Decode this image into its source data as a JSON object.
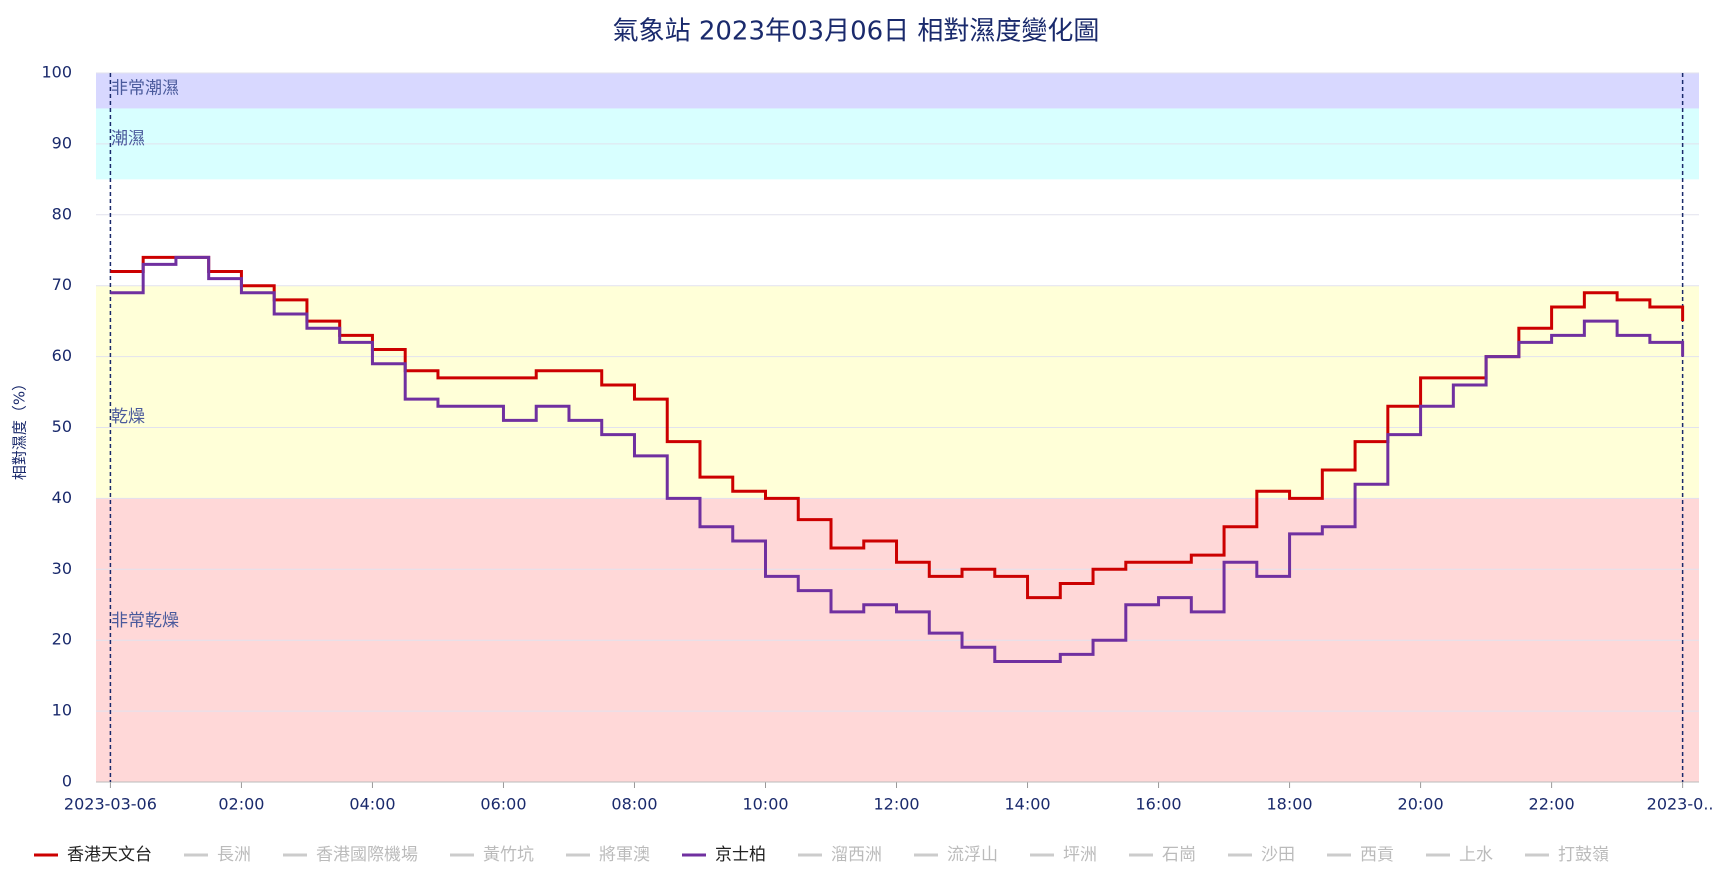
{
  "chart_data": {
    "type": "line",
    "title": "氣象站 2023年03月06日 相對濕度變化圖",
    "y_label": "相對濕度（%）",
    "x": [
      0,
      0.5,
      1,
      1.5,
      2,
      2.5,
      3,
      3.5,
      4,
      4.5,
      5,
      5.5,
      6,
      6.5,
      7,
      7.5,
      8,
      8.5,
      9,
      9.5,
      10,
      10.5,
      11,
      11.5,
      12,
      12.5,
      13,
      13.5,
      14,
      14.5,
      15,
      15.5,
      16,
      16.5,
      17,
      17.5,
      18,
      18.5,
      19,
      19.5,
      20,
      20.5,
      21,
      21.5,
      22,
      22.5,
      23,
      23.5,
      24
    ],
    "series": [
      {
        "name": "香港天文台",
        "color": "#cc0000",
        "visible": true,
        "values": [
          72,
          74,
          74,
          72,
          70,
          68,
          65,
          63,
          61,
          58,
          57,
          57,
          57,
          58,
          58,
          56,
          54,
          48,
          43,
          41,
          40,
          37,
          33,
          34,
          31,
          29,
          30,
          29,
          26,
          28,
          30,
          31,
          31,
          32,
          36,
          41,
          40,
          44,
          48,
          53,
          57,
          57,
          60,
          64,
          67,
          69,
          68,
          67,
          65
        ]
      },
      {
        "name": "長洲",
        "color": "#cccccc",
        "visible": false
      },
      {
        "name": "香港國際機場",
        "color": "#cccccc",
        "visible": false
      },
      {
        "name": "黃竹坑",
        "color": "#cccccc",
        "visible": false
      },
      {
        "name": "將軍澳",
        "color": "#cccccc",
        "visible": false
      },
      {
        "name": "京士柏",
        "color": "#7030a0",
        "visible": true,
        "values": [
          69,
          73,
          74,
          71,
          69,
          66,
          64,
          62,
          59,
          54,
          53,
          53,
          51,
          53,
          51,
          49,
          46,
          40,
          36,
          34,
          29,
          27,
          24,
          25,
          24,
          21,
          19,
          17,
          17,
          18,
          20,
          25,
          26,
          24,
          31,
          29,
          35,
          36,
          42,
          49,
          53,
          56,
          60,
          62,
          63,
          65,
          63,
          62,
          60
        ]
      },
      {
        "name": "溜西洲",
        "color": "#cccccc",
        "visible": false
      },
      {
        "name": "流浮山",
        "color": "#cccccc",
        "visible": false
      },
      {
        "name": "坪洲",
        "color": "#cccccc",
        "visible": false
      },
      {
        "name": "石崗",
        "color": "#cccccc",
        "visible": false
      },
      {
        "name": "沙田",
        "color": "#cccccc",
        "visible": false
      },
      {
        "name": "西貢",
        "color": "#cccccc",
        "visible": false
      },
      {
        "name": "上水",
        "color": "#cccccc",
        "visible": false
      },
      {
        "name": "打鼓嶺",
        "color": "#cccccc",
        "visible": false
      }
    ],
    "bands": [
      {
        "label": "非常潮濕",
        "from": 95,
        "to": 100,
        "color": "#d8d8ff"
      },
      {
        "label": "潮濕",
        "from": 85,
        "to": 95,
        "color": "#d8ffff"
      },
      {
        "label": "乾燥",
        "from": 40,
        "to": 70,
        "color": "#ffffd8"
      },
      {
        "label": "非常乾燥",
        "from": 0,
        "to": 40,
        "color": "#ffd8d8"
      }
    ],
    "vlines": [
      0,
      24
    ],
    "xlim": [
      -0.22,
      24.25
    ],
    "xticks": [
      {
        "value": 0,
        "label": "2023-03-06"
      },
      {
        "value": 2,
        "label": "02:00"
      },
      {
        "value": 4,
        "label": "04:00"
      },
      {
        "value": 6,
        "label": "06:00"
      },
      {
        "value": 8,
        "label": "08:00"
      },
      {
        "value": 10,
        "label": "10:00"
      },
      {
        "value": 12,
        "label": "12:00"
      },
      {
        "value": 14,
        "label": "14:00"
      },
      {
        "value": 16,
        "label": "16:00"
      },
      {
        "value": 18,
        "label": "18:00"
      },
      {
        "value": 20,
        "label": "20:00"
      },
      {
        "value": 22,
        "label": "22:00"
      },
      {
        "value": 24,
        "label": "2023-0..."
      }
    ],
    "ylim": [
      0,
      100
    ],
    "yticks": [
      0,
      10,
      20,
      30,
      40,
      50,
      60,
      70,
      80,
      90,
      100
    ],
    "grid": true,
    "step": true,
    "legend": "bottom"
  }
}
